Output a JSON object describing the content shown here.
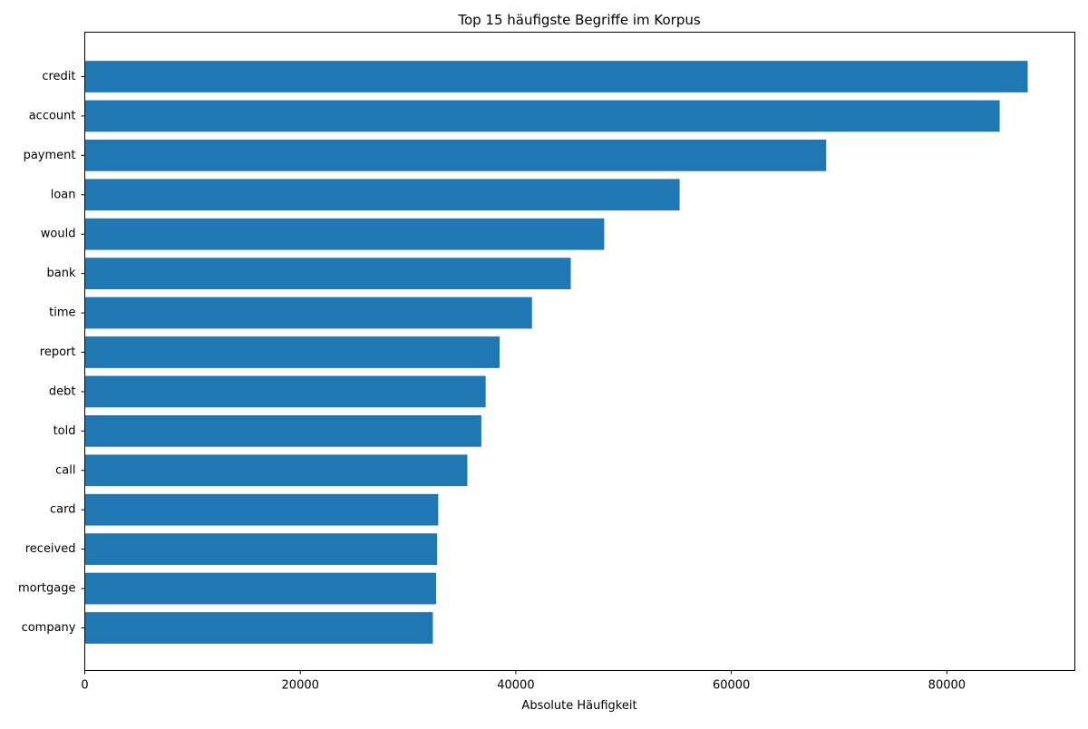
{
  "chart_data": {
    "type": "bar",
    "orientation": "horizontal",
    "title": "Top 15 häufigste Begriffe im Korpus",
    "xlabel": "Absolute Häufigkeit",
    "ylabel": "",
    "categories": [
      "credit",
      "account",
      "payment",
      "loan",
      "would",
      "bank",
      "time",
      "report",
      "debt",
      "told",
      "call",
      "card",
      "received",
      "mortgage",
      "company"
    ],
    "values": [
      87500,
      84900,
      68800,
      55200,
      48200,
      45100,
      41500,
      38500,
      37200,
      36800,
      35500,
      32800,
      32700,
      32600,
      32300
    ],
    "xlim": [
      0,
      91875
    ],
    "xticks": [
      0,
      20000,
      40000,
      60000,
      80000
    ],
    "xtick_labels": [
      "0",
      "20000",
      "40000",
      "60000",
      "80000"
    ],
    "bar_color": "#1f77b4",
    "grid": false,
    "legend": "none"
  }
}
